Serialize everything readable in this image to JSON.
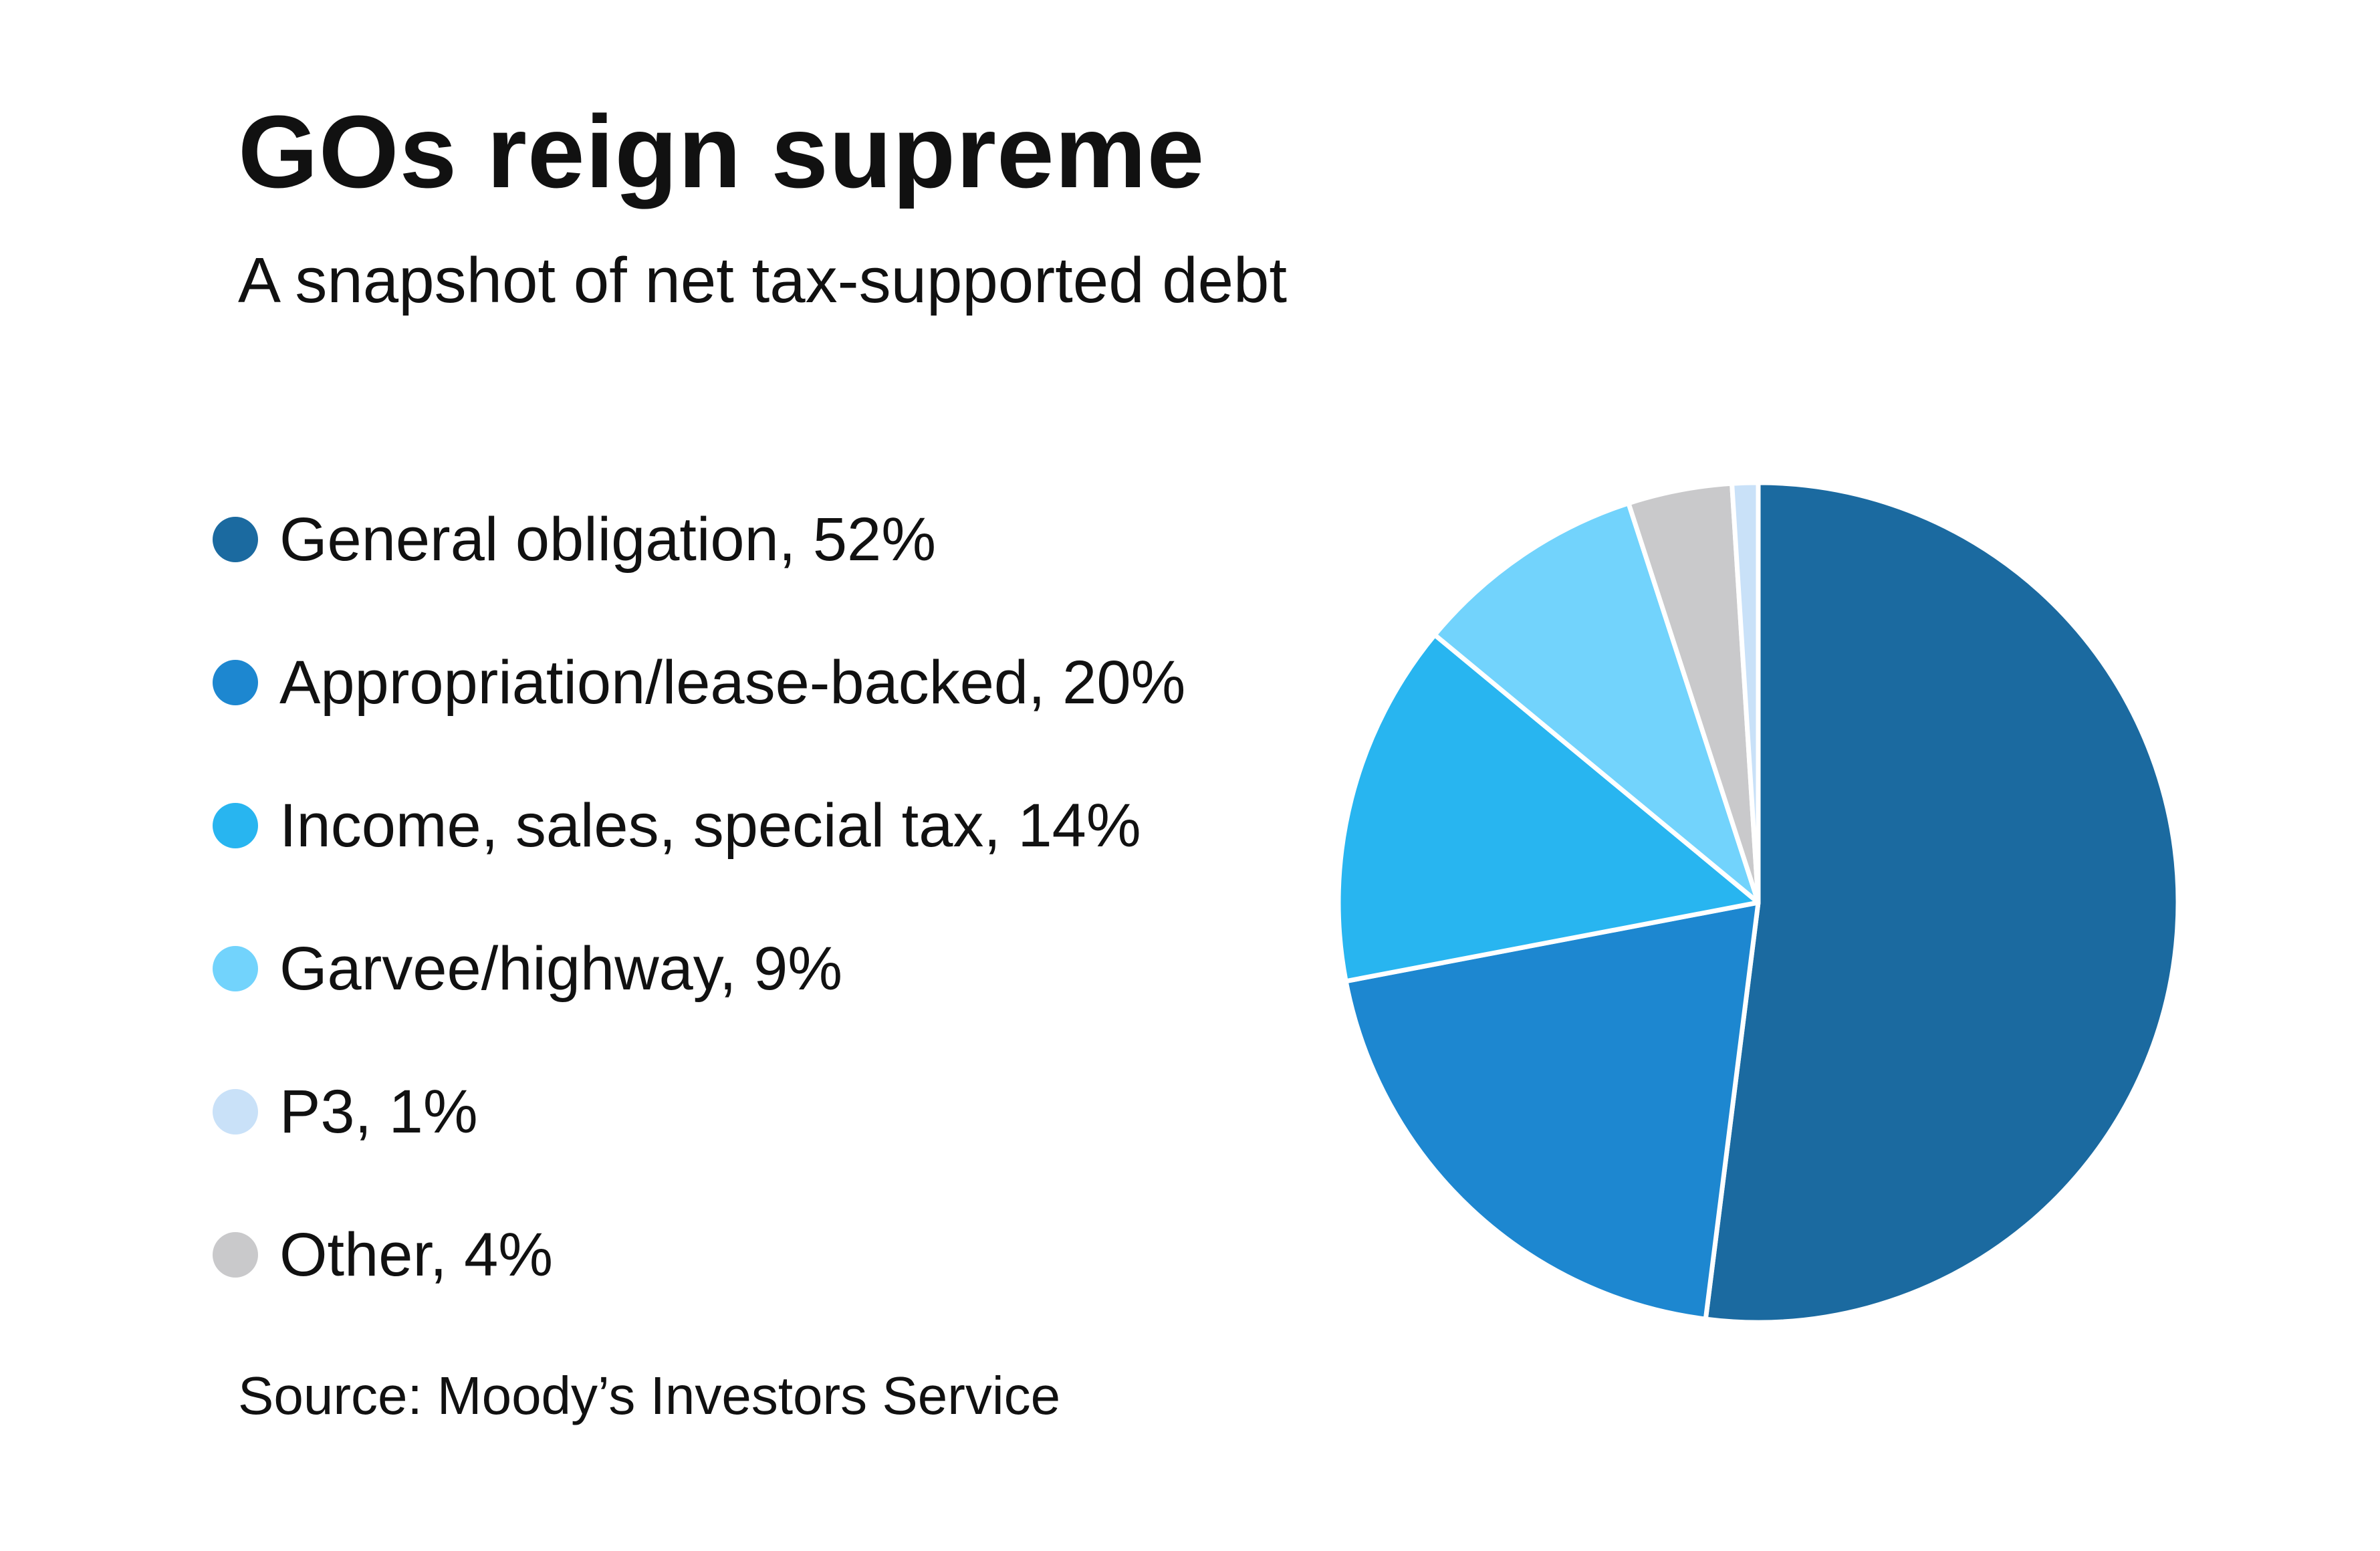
{
  "chart_data": {
    "type": "pie",
    "title": "GOs reign supreme",
    "subtitle": "A snapshot of net tax-supported debt",
    "source": "Source: Moody’s Investors Service",
    "legend_position": "left",
    "slices": [
      {
        "name": "General obligation",
        "value": 52,
        "label": "General obligation, 52%",
        "color": "#1b6aa0"
      },
      {
        "name": "Appropriation/lease-backed",
        "value": 20,
        "label": "Appropriation/lease-backed, 20%",
        "color": "#1d87d0"
      },
      {
        "name": "Income, sales, special tax",
        "value": 14,
        "label": "Income, sales, special tax, 14%",
        "color": "#28b5f0"
      },
      {
        "name": "Garvee/highway",
        "value": 9,
        "label": "Garvee/highway, 9%",
        "color": "#72d3fc"
      },
      {
        "name": "P3",
        "value": 1,
        "label": "P3, 1%",
        "color": "#c9e1f8"
      },
      {
        "name": "Other",
        "value": 4,
        "label": "Other, 4%",
        "color": "#c9c9cb"
      }
    ],
    "draw_order": [
      "General obligation",
      "Appropriation/lease-backed",
      "Income, sales, special tax",
      "Garvee/highway",
      "Other",
      "P3"
    ]
  }
}
